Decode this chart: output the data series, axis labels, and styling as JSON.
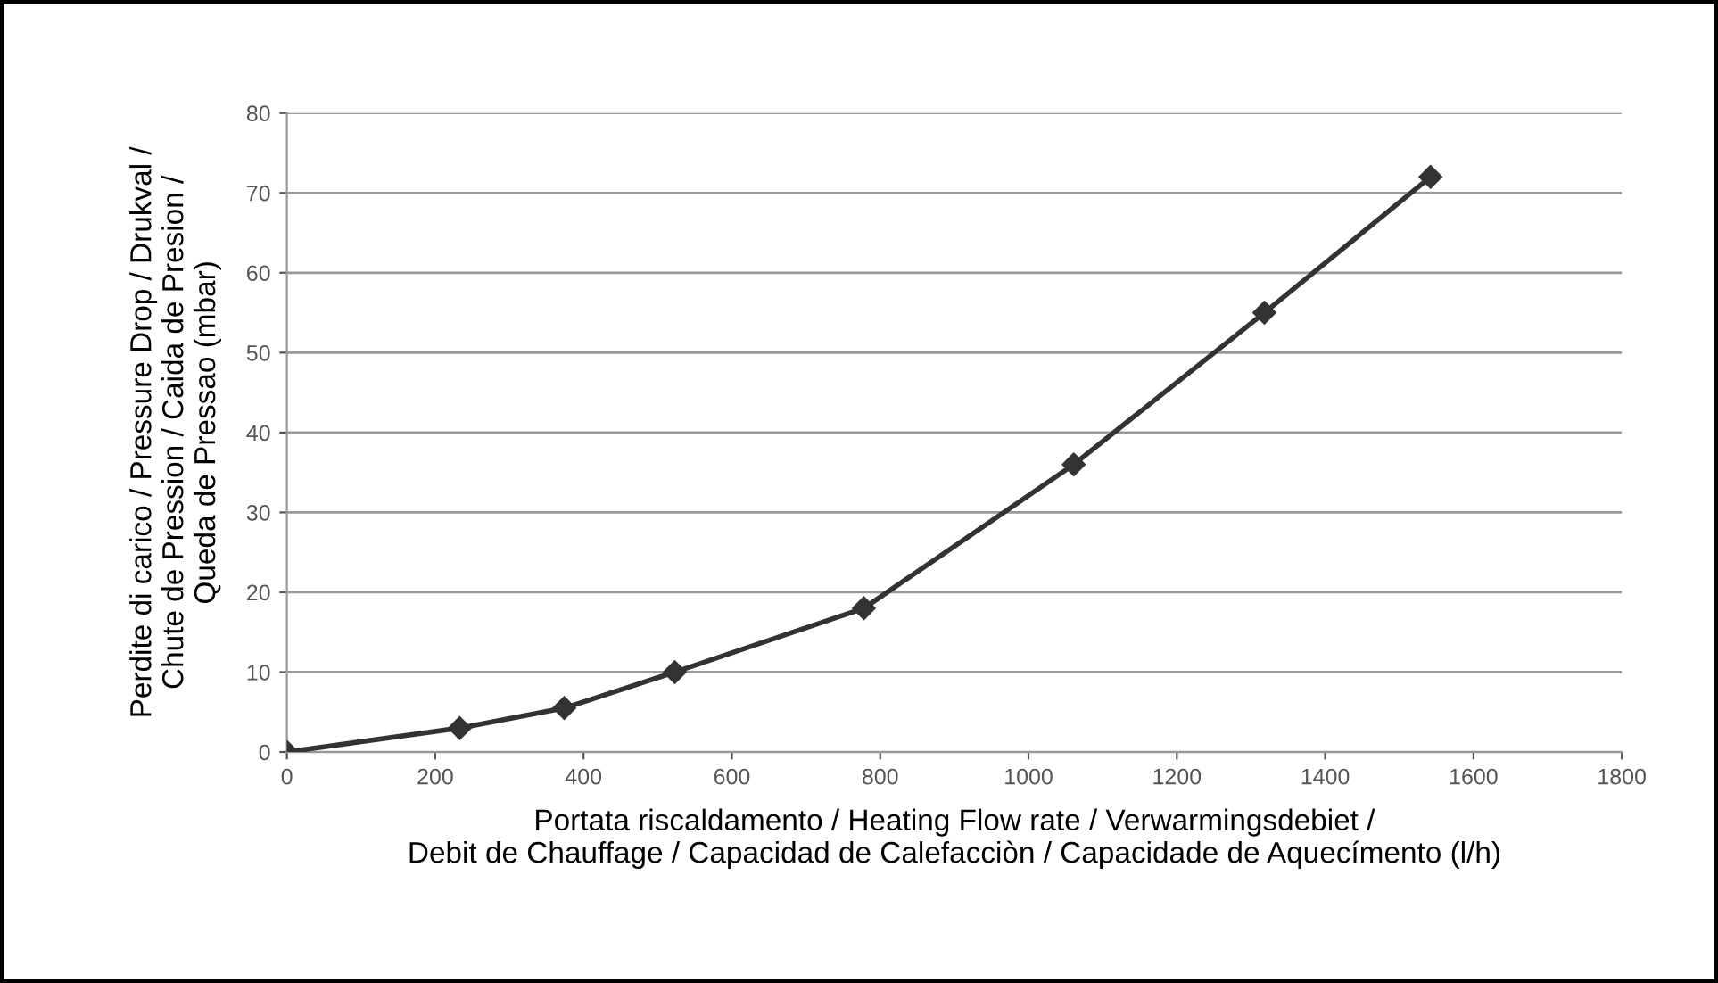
{
  "chart_data": {
    "type": "line",
    "xlabel": "Portata riscaldamento / Heating Flow rate / Verwarmingsdebiet /\nDebit de Chauffage / Capacidad de Calefacciòn / Capacidade de Aquecímento (l/h)",
    "ylabel": "Perdite di carico / Pressure Drop / Drukval /\nChute de Pression / Caida de Presion /\nQueda de Pressao (mbar)",
    "x": [
      0,
      233,
      374,
      523,
      778,
      1061,
      1318,
      1542
    ],
    "series": [
      {
        "color": "#333333",
        "values": [
          0,
          3,
          5.5,
          10,
          18,
          36,
          55,
          72
        ]
      }
    ],
    "xlim": [
      0,
      1800
    ],
    "xticks": [
      0,
      200,
      400,
      600,
      800,
      1000,
      1200,
      1400,
      1600,
      1800
    ],
    "ylim": [
      0,
      80
    ],
    "yticks": [
      0,
      10,
      20,
      30,
      40,
      50,
      60,
      70,
      80
    ],
    "grid": "y",
    "marker": "diamond",
    "line_style": "solid"
  }
}
